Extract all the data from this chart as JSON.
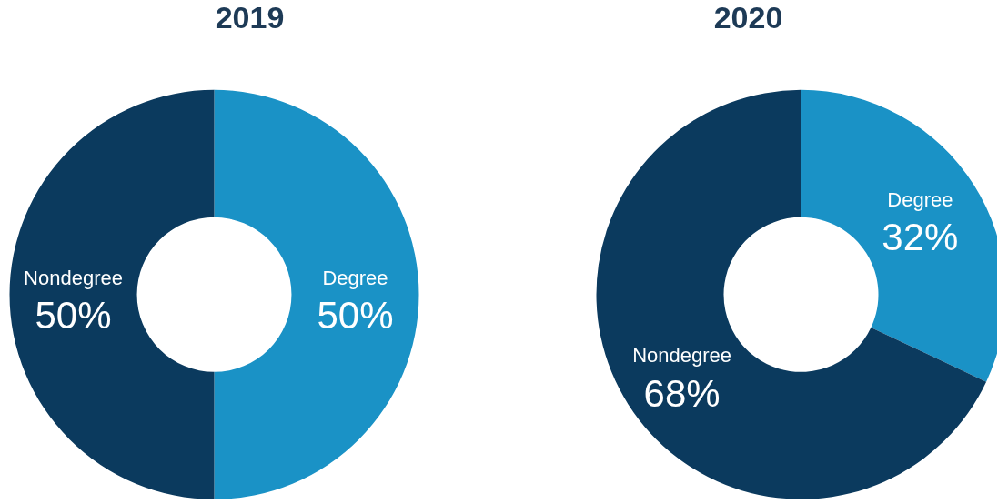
{
  "chart_data": [
    {
      "type": "donut",
      "title": "2019",
      "categories": [
        "Degree",
        "Nondegree"
      ],
      "values": [
        50,
        50
      ],
      "colors": [
        "#1a92c6",
        "#0b3a5e"
      ],
      "value_labels": [
        "50%",
        "50%"
      ],
      "legend": false
    },
    {
      "type": "donut",
      "title": "2020",
      "categories": [
        "Degree",
        "Nondegree"
      ],
      "values": [
        32,
        68
      ],
      "colors": [
        "#1a92c6",
        "#0b3a5e"
      ],
      "value_labels": [
        "32%",
        "68%"
      ],
      "legend": false
    }
  ]
}
